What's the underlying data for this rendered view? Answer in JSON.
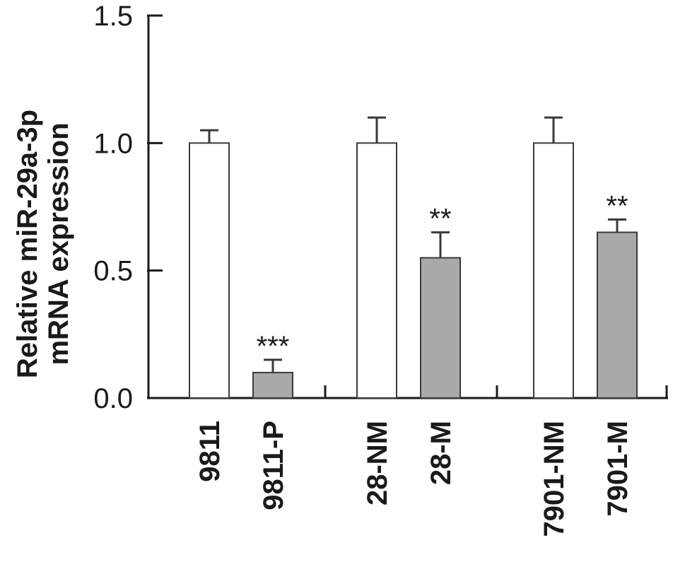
{
  "chart_data": {
    "type": "bar",
    "ylabel": [
      "Relative miR-29a-3p",
      "mRNA expression"
    ],
    "ylim": [
      0,
      1.5
    ],
    "yticks": [
      "0.0",
      "0.5",
      "1.0",
      "1.5"
    ],
    "ytick_values": [
      0,
      0.5,
      1.0,
      1.5
    ],
    "categories": [
      "9811",
      "9811-P",
      "28-NM",
      "28-M",
      "7901-NM",
      "7901-M"
    ],
    "values": [
      1.0,
      0.1,
      1.0,
      0.55,
      1.0,
      0.65
    ],
    "errors": [
      0.05,
      0.05,
      0.1,
      0.1,
      0.1,
      0.05
    ],
    "significance": [
      "",
      "***",
      "",
      "**",
      "",
      "**"
    ],
    "bar_colors": [
      "#ffffff",
      "#a9a9a9",
      "#ffffff",
      "#a9a9a9",
      "#ffffff",
      "#a9a9a9"
    ],
    "groups": [
      [
        0,
        1
      ],
      [
        2,
        3
      ],
      [
        4,
        5
      ]
    ],
    "grid": false
  }
}
